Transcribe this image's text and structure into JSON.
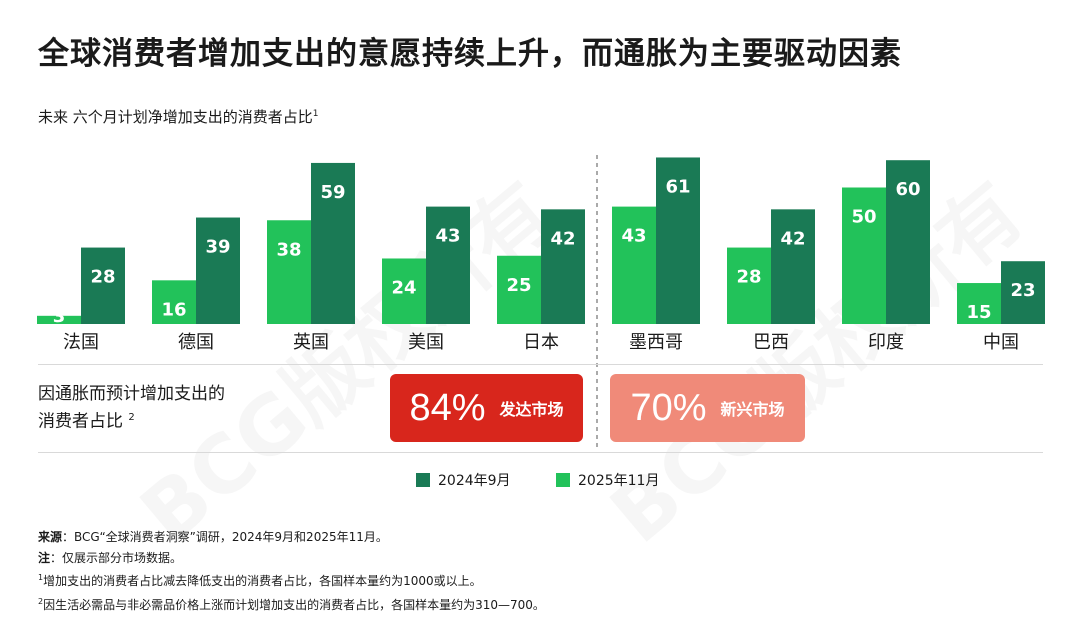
{
  "title": "全球消费者增加支出的意愿持续上升，而通胀为主要驱动因素",
  "subtitle": "未来 六个月计划净增加支出的消费者占比",
  "subtitle_sup": "1",
  "chart_data": {
    "type": "bar",
    "title": "全球消费者增加支出的意愿持续上升，而通胀为主要驱动因素",
    "ylabel": "",
    "xlabel": "",
    "ylim": [
      0,
      65
    ],
    "categories": [
      "法国",
      "德国",
      "英国",
      "美国",
      "日本",
      "墨西哥",
      "巴西",
      "印度",
      "中国"
    ],
    "series": [
      {
        "name": "2025年11月",
        "color": "#22c25a",
        "values": [
          3,
          16,
          38,
          24,
          25,
          43,
          28,
          50,
          15
        ]
      },
      {
        "name": "2024年9月",
        "color": "#1a7a55",
        "values": [
          28,
          39,
          59,
          43,
          42,
          61,
          42,
          60,
          23
        ]
      }
    ],
    "legend_placement": "bottom",
    "grid": false
  },
  "inflation_row": {
    "label_line1": "因通胀而预计增加支出的",
    "label_line2": "消费者占比",
    "label_sup": "2",
    "developed": {
      "value": "84%",
      "label": "发达市场",
      "color": "#d8261c"
    },
    "emerging": {
      "value": "70%",
      "label": "新兴市场",
      "color": "#f08a79"
    }
  },
  "legend": [
    {
      "label": "2024年9月",
      "color": "#1a7a55"
    },
    {
      "label": "2025年11月",
      "color": "#22c25a"
    }
  ],
  "notes": {
    "source_label": "来源",
    "source_text": "：BCG“全球消费者洞察”调研，2024年9月和2025年11月。",
    "note_label": "注",
    "note_text": "：仅展示部分市场数据。",
    "fn1_mark": "1",
    "fn1": "增加支出的消费者占比减去降低支出的消费者占比，各国样本量约为1000或以上。",
    "fn2_mark": "2",
    "fn2": "因生活必需品与非必需品价格上涨而计划增加支出的消费者占比，各国样本量约为310—700。"
  },
  "watermark": "BCG版权所有"
}
